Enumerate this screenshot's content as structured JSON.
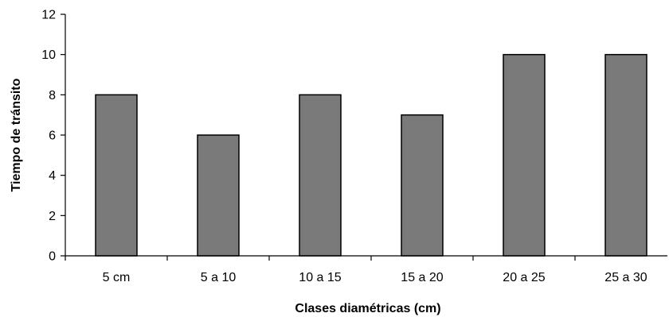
{
  "chart_data": {
    "type": "bar",
    "title": "",
    "xlabel": "Clases diamétricas (cm)",
    "ylabel": "Tiempo de tránsito",
    "categories": [
      "5 cm",
      "5 a 10",
      "10 a 15",
      "15 a 20",
      "20 a 25",
      "25 a 30"
    ],
    "values": [
      8,
      6,
      8,
      7,
      10,
      10
    ],
    "ylim": [
      0,
      12
    ],
    "yticks": [
      0,
      2,
      4,
      6,
      8,
      10,
      12
    ],
    "ytick_labels": [
      "0",
      "2",
      "4",
      "6",
      "8",
      "10",
      "12"
    ],
    "grid": false,
    "legend": "none",
    "colors": {
      "bar_fill": "#7a7a7a",
      "bar_stroke": "#000000",
      "axis": "#000000"
    }
  }
}
